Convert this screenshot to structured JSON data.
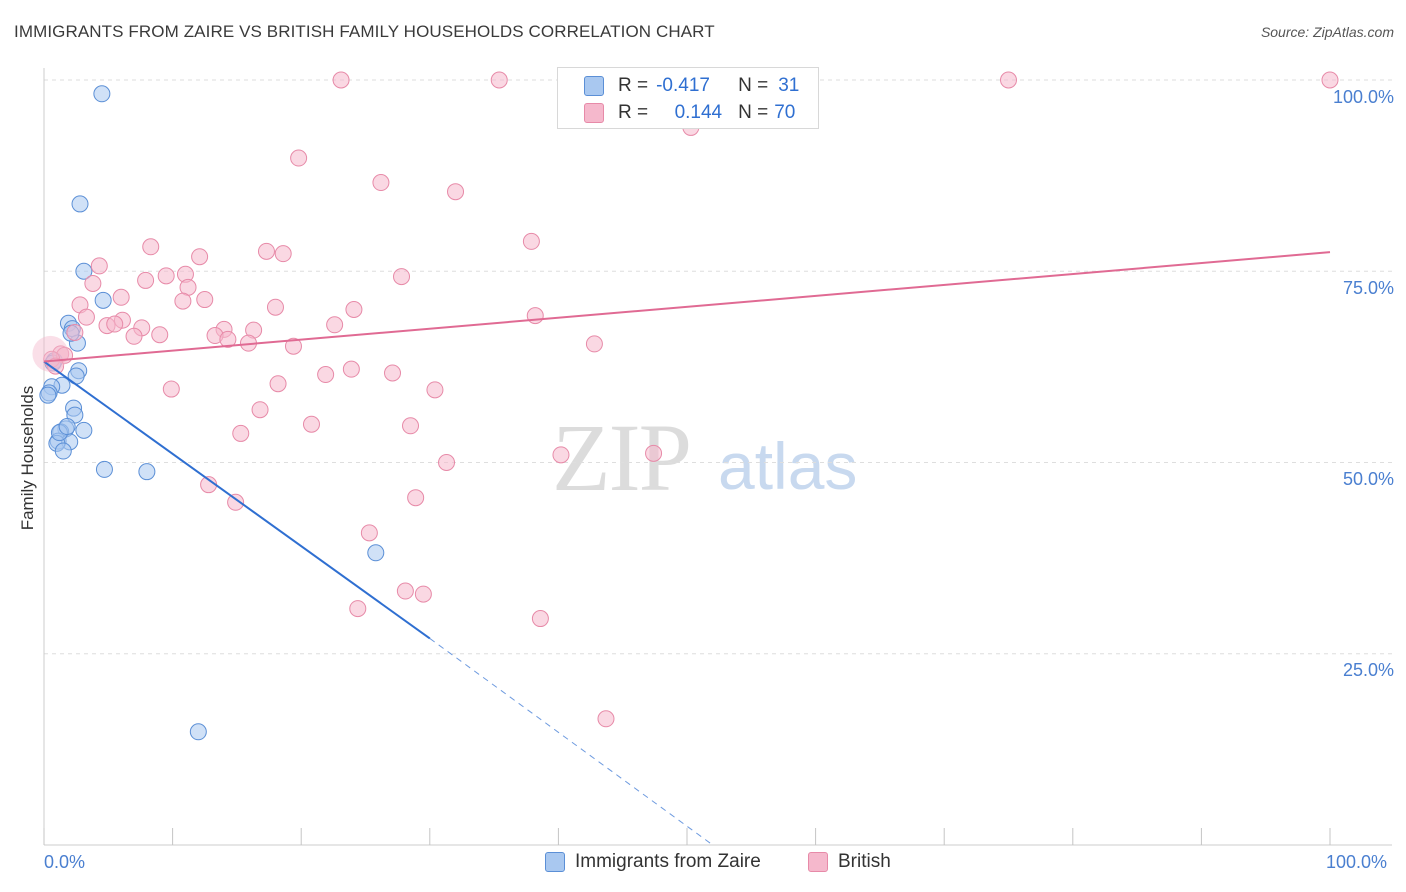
{
  "header": {
    "title": "IMMIGRANTS FROM ZAIRE VS BRITISH FAMILY HOUSEHOLDS CORRELATION CHART",
    "source": "Source: ZipAtlas.com"
  },
  "watermark": {
    "zip": "ZIP",
    "atlas": "atlas"
  },
  "legend": {
    "rows": [
      {
        "r_label": "R =",
        "r_value": "-0.417",
        "n_label": "N =",
        "n_value": "31",
        "color": "#a9c8f0"
      },
      {
        "r_label": "R =",
        "r_value": "0.144",
        "n_label": "N =",
        "n_value": "70",
        "color": "#f5b8cc"
      }
    ]
  },
  "bottom_legend": {
    "items": [
      {
        "label": "Immigrants from Zaire",
        "color": "#a9c8f0"
      },
      {
        "label": "British",
        "color": "#f5b8cc"
      }
    ]
  },
  "chart_data": {
    "type": "scatter",
    "title": "IMMIGRANTS FROM ZAIRE VS BRITISH FAMILY HOUSEHOLDS CORRELATION CHART",
    "xlabel": "",
    "ylabel": "Family Households",
    "xlim": [
      0,
      100
    ],
    "ylim": [
      0,
      100
    ],
    "x_tick_labels": [
      "0.0%",
      "100.0%"
    ],
    "y_tick_labels": [
      "25.0%",
      "50.0%",
      "75.0%",
      "100.0%"
    ],
    "y_ticks": [
      25,
      50,
      75,
      100
    ],
    "grid": true,
    "series": [
      {
        "name": "Immigrants from Zaire",
        "color": "#a9c8f0",
        "stroke": "#5b8fd6",
        "line_color": "#2f6fd1",
        "trend": {
          "x0": 0,
          "y0": 63.2,
          "x1": 30,
          "y1": 27.0,
          "dash_to_x": 52,
          "dash_to_y": 0
        },
        "points": [
          [
            4.5,
            98.2
          ],
          [
            2.8,
            83.8
          ],
          [
            3.1,
            75.0
          ],
          [
            4.6,
            71.2
          ],
          [
            1.9,
            68.2
          ],
          [
            2.2,
            67.5
          ],
          [
            2.6,
            65.6
          ],
          [
            0.8,
            63.3
          ],
          [
            2.7,
            62.0
          ],
          [
            2.5,
            61.3
          ],
          [
            1.4,
            60.1
          ],
          [
            0.6,
            59.9
          ],
          [
            0.4,
            59.1
          ],
          [
            0.3,
            58.8
          ],
          [
            2.3,
            57.1
          ],
          [
            2.4,
            56.2
          ],
          [
            3.1,
            54.2
          ],
          [
            1.7,
            54.4
          ],
          [
            1.3,
            54.0
          ],
          [
            1.1,
            52.8
          ],
          [
            2.0,
            52.7
          ],
          [
            1.0,
            52.5
          ],
          [
            1.5,
            51.5
          ],
          [
            4.7,
            49.1
          ],
          [
            8.0,
            48.8
          ],
          [
            25.8,
            38.2
          ],
          [
            12.0,
            14.8
          ],
          [
            1.2,
            53.9
          ],
          [
            0.7,
            63.0
          ],
          [
            2.1,
            66.9
          ],
          [
            1.8,
            54.7
          ]
        ]
      },
      {
        "name": "British",
        "color": "#f5b8cc",
        "stroke": "#e78aa8",
        "line_color": "#e06a93",
        "trend": {
          "x0": 0,
          "y0": 63.2,
          "x1": 100,
          "y1": 77.5
        },
        "points": [
          [
            23.1,
            100.0
          ],
          [
            35.4,
            100.0
          ],
          [
            49.3,
            100.0
          ],
          [
            75.0,
            100.0
          ],
          [
            100.0,
            100.0
          ],
          [
            50.3,
            93.8
          ],
          [
            19.8,
            89.8
          ],
          [
            26.2,
            86.6
          ],
          [
            32.0,
            85.4
          ],
          [
            37.9,
            78.9
          ],
          [
            8.3,
            78.2
          ],
          [
            17.3,
            77.6
          ],
          [
            18.6,
            77.3
          ],
          [
            12.1,
            76.9
          ],
          [
            4.3,
            75.7
          ],
          [
            9.5,
            74.4
          ],
          [
            11.0,
            74.6
          ],
          [
            7.9,
            73.8
          ],
          [
            27.8,
            74.3
          ],
          [
            3.8,
            73.4
          ],
          [
            11.2,
            72.9
          ],
          [
            6.0,
            71.6
          ],
          [
            12.5,
            71.3
          ],
          [
            10.8,
            71.1
          ],
          [
            2.8,
            70.6
          ],
          [
            18.0,
            70.3
          ],
          [
            24.1,
            70.0
          ],
          [
            3.3,
            69.0
          ],
          [
            38.2,
            69.2
          ],
          [
            6.1,
            68.6
          ],
          [
            22.6,
            68.0
          ],
          [
            4.9,
            67.9
          ],
          [
            5.5,
            68.1
          ],
          [
            7.6,
            67.6
          ],
          [
            14.0,
            67.4
          ],
          [
            16.3,
            67.3
          ],
          [
            2.4,
            67.0
          ],
          [
            9.0,
            66.7
          ],
          [
            13.3,
            66.6
          ],
          [
            7.0,
            66.5
          ],
          [
            14.3,
            66.1
          ],
          [
            15.9,
            65.6
          ],
          [
            19.4,
            65.2
          ],
          [
            42.8,
            65.5
          ],
          [
            1.3,
            64.2
          ],
          [
            1.6,
            64.0
          ],
          [
            0.6,
            63.5
          ],
          [
            0.9,
            62.6
          ],
          [
            23.9,
            62.2
          ],
          [
            27.1,
            61.7
          ],
          [
            21.9,
            61.5
          ],
          [
            18.2,
            60.3
          ],
          [
            30.4,
            59.5
          ],
          [
            9.9,
            59.6
          ],
          [
            16.8,
            56.9
          ],
          [
            20.8,
            55.0
          ],
          [
            28.5,
            54.8
          ],
          [
            15.3,
            53.8
          ],
          [
            40.2,
            51.0
          ],
          [
            47.4,
            51.2
          ],
          [
            31.3,
            50.0
          ],
          [
            12.8,
            47.1
          ],
          [
            28.9,
            45.4
          ],
          [
            14.9,
            44.8
          ],
          [
            25.3,
            40.8
          ],
          [
            28.1,
            33.2
          ],
          [
            29.5,
            32.8
          ],
          [
            24.4,
            30.9
          ],
          [
            38.6,
            29.6
          ],
          [
            43.7,
            16.5
          ]
        ]
      }
    ]
  }
}
